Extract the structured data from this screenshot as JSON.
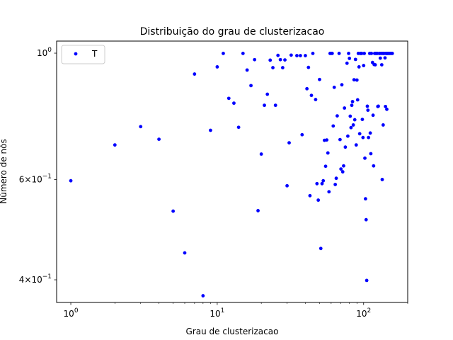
{
  "chart_data": {
    "type": "scatter",
    "title": "Distribuição do grau de clusterizacao",
    "xlabel": "Grau de clusterizacao",
    "ylabel": "Número de nós",
    "xscale": "log",
    "yscale": "log",
    "xlim": [
      0.8,
      200
    ],
    "ylim": [
      0.365,
      1.05
    ],
    "grid": false,
    "legend": {
      "placement": "top-left",
      "entries": [
        "T"
      ]
    },
    "x_ticks": [
      {
        "value": 1,
        "base": "10",
        "exp": "0"
      },
      {
        "value": 10,
        "base": "10",
        "exp": "1"
      },
      {
        "value": 100,
        "base": "10",
        "exp": "2"
      }
    ],
    "y_ticks": [
      {
        "value": 0.4,
        "mant": "4",
        "base": "10",
        "exp": "−1"
      },
      {
        "value": 0.6,
        "mant": "6",
        "base": "10",
        "exp": "−1"
      },
      {
        "value": 1.0,
        "mant": "",
        "base": "10",
        "exp": "0"
      }
    ],
    "series": [
      {
        "name": "T",
        "color": "#0000ff",
        "marker": "circle",
        "points": [
          [
            1,
            0.597
          ],
          [
            2,
            0.69
          ],
          [
            3,
            0.743
          ],
          [
            4,
            0.706
          ],
          [
            5,
            0.528
          ],
          [
            6,
            0.446
          ],
          [
            7,
            0.919
          ],
          [
            8,
            0.375
          ],
          [
            9,
            0.732
          ],
          [
            10,
            0.946
          ],
          [
            11,
            0.999
          ],
          [
            12,
            0.833
          ],
          [
            13,
            0.817
          ],
          [
            14,
            0.741
          ],
          [
            15,
            0.999
          ],
          [
            16,
            0.934
          ],
          [
            17,
            0.877
          ],
          [
            18,
            0.974
          ],
          [
            19,
            0.529
          ],
          [
            20,
            0.665
          ],
          [
            21,
            0.81
          ],
          [
            22,
            0.847
          ],
          [
            23,
            0.972
          ],
          [
            24,
            0.943
          ],
          [
            25,
            0.81
          ],
          [
            26,
            0.991
          ],
          [
            27,
            0.974
          ],
          [
            28,
            0.943
          ],
          [
            29,
            0.973
          ],
          [
            30,
            0.585
          ],
          [
            31,
            0.696
          ],
          [
            32,
            0.992
          ],
          [
            35,
            0.99
          ],
          [
            37,
            0.99
          ],
          [
            38,
            0.719
          ],
          [
            40,
            0.99
          ],
          [
            41,
            0.866
          ],
          [
            42,
            0.944
          ],
          [
            43,
            0.562
          ],
          [
            44,
            0.843
          ],
          [
            45,
            0.999
          ],
          [
            47,
            0.829
          ],
          [
            48,
            0.59
          ],
          [
            49,
            0.552
          ],
          [
            50,
            0.899
          ],
          [
            51,
            0.454
          ],
          [
            52,
            0.59
          ],
          [
            53,
            0.597
          ],
          [
            54,
            0.703
          ],
          [
            55,
            0.633
          ],
          [
            56,
            0.704
          ],
          [
            57,
            0.668
          ],
          [
            58,
            0.571
          ],
          [
            59,
            0.999
          ],
          [
            60,
            0.999
          ],
          [
            61,
            0.999
          ],
          [
            62,
            0.745
          ],
          [
            63,
            0.871
          ],
          [
            64,
            0.588
          ],
          [
            65,
            0.603
          ],
          [
            66,
            0.776
          ],
          [
            68,
            0.999
          ],
          [
            69,
            0.705
          ],
          [
            70,
            0.626
          ],
          [
            71,
            0.88
          ],
          [
            72,
            0.619
          ],
          [
            73,
            0.634
          ],
          [
            74,
            0.801
          ],
          [
            75,
            0.684
          ],
          [
            77,
            0.96
          ],
          [
            78,
            0.715
          ],
          [
            79,
            0.999
          ],
          [
            80,
            0.979
          ],
          [
            81,
            0.775
          ],
          [
            82,
            0.74
          ],
          [
            83,
            0.81
          ],
          [
            84,
            0.822
          ],
          [
            85,
            0.748
          ],
          [
            86,
            0.898
          ],
          [
            87,
            0.764
          ],
          [
            88,
            0.975
          ],
          [
            89,
            0.69
          ],
          [
            90,
            0.897
          ],
          [
            91,
            0.828
          ],
          [
            92,
            0.999
          ],
          [
            93,
            0.946
          ],
          [
            94,
            0.722
          ],
          [
            95,
            0.999
          ],
          [
            96,
            0.999
          ],
          [
            97,
            0.999
          ],
          [
            98,
            0.765
          ],
          [
            99,
            0.711
          ],
          [
            100,
            0.951
          ],
          [
            101,
            0.999
          ],
          [
            102,
            0.654
          ],
          [
            103,
            0.555
          ],
          [
            104,
            0.51
          ],
          [
            105,
            0.399
          ],
          [
            106,
            0.807
          ],
          [
            107,
            0.794
          ],
          [
            108,
            0.711
          ],
          [
            110,
            0.999
          ],
          [
            111,
            0.724
          ],
          [
            112,
            0.666
          ],
          [
            113,
            0.999
          ],
          [
            115,
            0.963
          ],
          [
            116,
            0.778
          ],
          [
            117,
            0.634
          ],
          [
            118,
            0.955
          ],
          [
            119,
            0.999
          ],
          [
            120,
            0.954
          ],
          [
            121,
            0.999
          ],
          [
            122,
            0.999
          ],
          [
            124,
            0.999
          ],
          [
            125,
            0.806
          ],
          [
            126,
            0.807
          ],
          [
            128,
            0.999
          ],
          [
            129,
            0.999
          ],
          [
            130,
            0.98
          ],
          [
            132,
            0.999
          ],
          [
            133,
            0.954
          ],
          [
            134,
            0.6
          ],
          [
            135,
            0.999
          ],
          [
            136,
            0.748
          ],
          [
            137,
            0.999
          ],
          [
            138,
            0.999
          ],
          [
            140,
            0.981
          ],
          [
            141,
            0.806
          ],
          [
            142,
            0.999
          ],
          [
            143,
            0.999
          ],
          [
            144,
            0.797
          ],
          [
            145,
            0.999
          ],
          [
            146,
            0.999
          ],
          [
            148,
            0.999
          ],
          [
            150,
            0.999
          ],
          [
            152,
            0.999
          ],
          [
            155,
            0.999
          ],
          [
            157,
            0.999
          ]
        ]
      }
    ]
  }
}
